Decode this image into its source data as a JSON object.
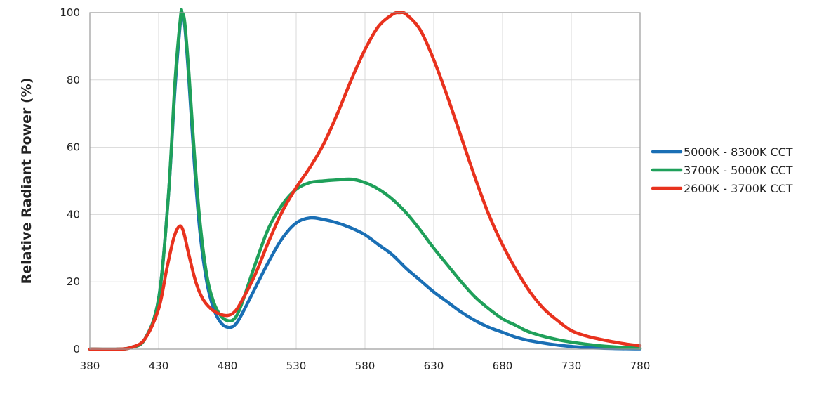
{
  "chart_data": {
    "type": "line",
    "title": "",
    "xlabel": "",
    "ylabel": "Relative Radiant Power (%)",
    "xlim": [
      380,
      780
    ],
    "ylim": [
      0,
      100
    ],
    "xticks": [
      380,
      430,
      480,
      530,
      580,
      630,
      680,
      730,
      780
    ],
    "yticks": [
      0,
      20,
      40,
      60,
      80,
      100
    ],
    "grid": true,
    "legend_position": "right",
    "series": [
      {
        "name": "5000K - 8300K CCT",
        "color": "#1a6fb5",
        "points": [
          [
            380,
            0
          ],
          [
            400,
            0
          ],
          [
            410,
            0.5
          ],
          [
            420,
            3
          ],
          [
            430,
            15
          ],
          [
            437,
            45
          ],
          [
            442,
            78
          ],
          [
            446,
            98
          ],
          [
            447,
            100
          ],
          [
            449,
            96
          ],
          [
            452,
            80
          ],
          [
            456,
            55
          ],
          [
            460,
            35
          ],
          [
            465,
            20
          ],
          [
            470,
            12
          ],
          [
            475,
            8
          ],
          [
            480,
            6.5
          ],
          [
            485,
            7
          ],
          [
            490,
            10
          ],
          [
            500,
            18
          ],
          [
            510,
            26
          ],
          [
            520,
            33
          ],
          [
            530,
            37.5
          ],
          [
            540,
            39
          ],
          [
            550,
            38.5
          ],
          [
            560,
            37.5
          ],
          [
            570,
            36
          ],
          [
            580,
            34
          ],
          [
            590,
            31
          ],
          [
            600,
            28
          ],
          [
            610,
            24
          ],
          [
            620,
            20.5
          ],
          [
            630,
            17
          ],
          [
            640,
            14
          ],
          [
            650,
            11
          ],
          [
            660,
            8.5
          ],
          [
            670,
            6.5
          ],
          [
            680,
            5
          ],
          [
            690,
            3.5
          ],
          [
            700,
            2.5
          ],
          [
            720,
            1.2
          ],
          [
            740,
            0.5
          ],
          [
            760,
            0.2
          ],
          [
            780,
            0.1
          ]
        ]
      },
      {
        "name": "3700K - 5000K CCT",
        "color": "#1fa05a",
        "points": [
          [
            380,
            0
          ],
          [
            400,
            0
          ],
          [
            410,
            0.5
          ],
          [
            420,
            3
          ],
          [
            430,
            15
          ],
          [
            437,
            45
          ],
          [
            442,
            80
          ],
          [
            446,
            99
          ],
          [
            447,
            100
          ],
          [
            449,
            97
          ],
          [
            452,
            82
          ],
          [
            456,
            58
          ],
          [
            460,
            38
          ],
          [
            465,
            22
          ],
          [
            470,
            14
          ],
          [
            475,
            10
          ],
          [
            480,
            8.5
          ],
          [
            485,
            9
          ],
          [
            490,
            13
          ],
          [
            500,
            25
          ],
          [
            510,
            36
          ],
          [
            520,
            43
          ],
          [
            530,
            47.5
          ],
          [
            540,
            49.5
          ],
          [
            550,
            50
          ],
          [
            560,
            50.3
          ],
          [
            570,
            50.5
          ],
          [
            580,
            49.5
          ],
          [
            590,
            47.5
          ],
          [
            600,
            44.5
          ],
          [
            610,
            40.5
          ],
          [
            620,
            35.5
          ],
          [
            630,
            30
          ],
          [
            640,
            25
          ],
          [
            650,
            20
          ],
          [
            660,
            15.5
          ],
          [
            670,
            12
          ],
          [
            680,
            9
          ],
          [
            690,
            7
          ],
          [
            700,
            5
          ],
          [
            720,
            2.8
          ],
          [
            740,
            1.5
          ],
          [
            760,
            0.7
          ],
          [
            780,
            0.3
          ]
        ]
      },
      {
        "name": "2600K - 3700K CCT",
        "color": "#e8321e",
        "points": [
          [
            380,
            0
          ],
          [
            400,
            0
          ],
          [
            410,
            0.5
          ],
          [
            420,
            3
          ],
          [
            430,
            12
          ],
          [
            436,
            24
          ],
          [
            441,
            33
          ],
          [
            445,
            36.5
          ],
          [
            448,
            35
          ],
          [
            452,
            28
          ],
          [
            457,
            20
          ],
          [
            462,
            15
          ],
          [
            468,
            12
          ],
          [
            474,
            10.5
          ],
          [
            480,
            10
          ],
          [
            485,
            11
          ],
          [
            490,
            14
          ],
          [
            500,
            22
          ],
          [
            510,
            32
          ],
          [
            520,
            41
          ],
          [
            530,
            48
          ],
          [
            540,
            54
          ],
          [
            550,
            61
          ],
          [
            560,
            70
          ],
          [
            570,
            80
          ],
          [
            580,
            89
          ],
          [
            590,
            96
          ],
          [
            600,
            99.5
          ],
          [
            605,
            100
          ],
          [
            610,
            99.5
          ],
          [
            620,
            95
          ],
          [
            630,
            86
          ],
          [
            640,
            75
          ],
          [
            650,
            63
          ],
          [
            660,
            51
          ],
          [
            670,
            40
          ],
          [
            680,
            31
          ],
          [
            690,
            23.5
          ],
          [
            700,
            17
          ],
          [
            710,
            12
          ],
          [
            720,
            8.5
          ],
          [
            730,
            5.5
          ],
          [
            740,
            4
          ],
          [
            750,
            3
          ],
          [
            760,
            2.2
          ],
          [
            770,
            1.5
          ],
          [
            780,
            1
          ]
        ]
      }
    ]
  }
}
